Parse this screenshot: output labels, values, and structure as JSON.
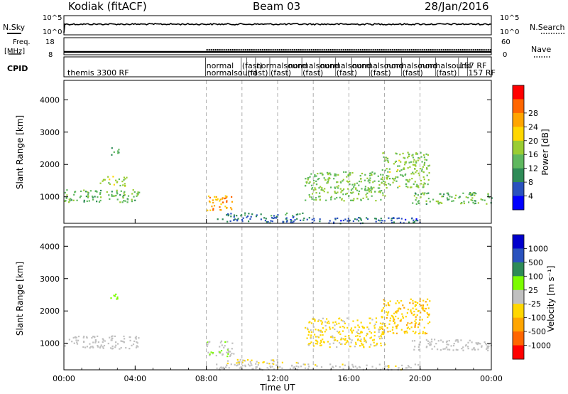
{
  "header": {
    "station": "Kodiak (fitACF)",
    "beam": "Beam 03",
    "date": "28/Jan/2016"
  },
  "top_panels": {
    "nsky": {
      "label": "N.Sky",
      "ticks": [
        "10^5",
        "10^0"
      ]
    },
    "nsearch": {
      "label": "N.Search",
      "ticks": [
        "10^5",
        "10^0"
      ]
    },
    "freq": {
      "label": "Freq.",
      "unit": "[MHz]",
      "ticks": [
        "18",
        "8"
      ]
    },
    "nave": {
      "label": "Nave",
      "ticks": [
        "60",
        "0"
      ]
    },
    "cpid": {
      "label": "CPID"
    }
  },
  "cpid_labels": [
    {
      "text": "themis 3300 RF",
      "t": 0.2,
      "row": 1
    },
    {
      "text": "normal",
      "t": 8.0,
      "row": 0
    },
    {
      "text": "normalsound",
      "t": 8.0,
      "row": 1
    },
    {
      "text": "(fast)",
      "t": 10.0,
      "row": 0
    },
    {
      "text": "(fast)",
      "t": 10.3,
      "row": 1
    },
    {
      "text": "normalsound",
      "t": 10.8,
      "row": 0
    },
    {
      "text": "(fast)",
      "t": 11.6,
      "row": 1
    },
    {
      "text": "normalsound",
      "t": 12.6,
      "row": 0
    },
    {
      "text": "(fast)",
      "t": 13.4,
      "row": 1
    },
    {
      "text": "normalsound",
      "t": 14.4,
      "row": 0
    },
    {
      "text": "(fast)",
      "t": 15.3,
      "row": 1
    },
    {
      "text": "normalsound",
      "t": 16.2,
      "row": 0
    },
    {
      "text": "(fast)",
      "t": 17.2,
      "row": 1
    },
    {
      "text": "normalsound",
      "t": 18.1,
      "row": 0
    },
    {
      "text": "(fast)",
      "t": 19.0,
      "row": 1
    },
    {
      "text": "normalsound",
      "t": 20.0,
      "row": 0
    },
    {
      "text": "(fast)",
      "t": 20.9,
      "row": 1
    },
    {
      "text": "157 RF",
      "t": 22.2,
      "row": 0
    },
    {
      "text": "157 RF",
      "t": 22.7,
      "row": 1
    }
  ],
  "chart_data": [
    {
      "type": "heatmap",
      "title": "",
      "xlabel": "Time UT",
      "ylabel": "Slant Range [km]",
      "xlim": [
        0,
        24
      ],
      "ylim": [
        180,
        4600
      ],
      "xticks": [
        "00:00",
        "04:00",
        "08:00",
        "12:00",
        "16:00",
        "20:00",
        "00:00"
      ],
      "yticks": [
        1000,
        2000,
        3000,
        4000
      ],
      "colorbar": {
        "label": "Power [dB]",
        "ticks": [
          "4",
          "8",
          "12",
          "16",
          "20",
          "24",
          "28"
        ],
        "range": [
          0,
          30
        ],
        "colors": [
          "#0000ff",
          "#2a52be",
          "#2e8b57",
          "#5fb85f",
          "#9acd32",
          "#ffd700",
          "#ffa500",
          "#ff6600",
          "#ff0000"
        ]
      },
      "features": [
        {
          "t": [
            0.0,
            4.2
          ],
          "range": [
            850,
            1250
          ],
          "value": 12
        },
        {
          "t": [
            2.0,
            3.5
          ],
          "range": [
            1350,
            1650
          ],
          "value": 14
        },
        {
          "t": [
            2.6,
            3.1
          ],
          "range": [
            2300,
            2550
          ],
          "value": 10
        },
        {
          "t": [
            8.0,
            9.5
          ],
          "range": [
            600,
            1100
          ],
          "value": 22
        },
        {
          "t": [
            9.0,
            13.5
          ],
          "range": [
            380,
            520
          ],
          "value": 8
        },
        {
          "t": [
            13.5,
            18.0
          ],
          "range": [
            900,
            1800
          ],
          "value": 13
        },
        {
          "t": [
            17.8,
            20.5
          ],
          "range": [
            1300,
            2400
          ],
          "value": 14
        },
        {
          "t": [
            19.5,
            24.0
          ],
          "range": [
            800,
            1150
          ],
          "value": 12
        },
        {
          "t": [
            8.5,
            20.0
          ],
          "range": [
            200,
            380
          ],
          "value": 6
        }
      ]
    },
    {
      "type": "heatmap",
      "title": "",
      "xlabel": "Time UT",
      "ylabel": "Slant Range [km]",
      "xlim": [
        0,
        24
      ],
      "ylim": [
        180,
        4600
      ],
      "xticks": [
        "00:00",
        "04:00",
        "08:00",
        "12:00",
        "16:00",
        "20:00",
        "00:00"
      ],
      "yticks": [
        1000,
        2000,
        3000,
        4000
      ],
      "colorbar": {
        "label": "Velocity [m s⁻¹]",
        "ticks": [
          "1000",
          "500",
          "100",
          "25",
          "-25",
          "-100",
          "-500",
          "-1000"
        ],
        "range": [
          -1000,
          1000
        ],
        "colors": [
          "#0000cc",
          "#2a52be",
          "#2e8b57",
          "#7cfc00",
          "#c0c0c0",
          "#ffd700",
          "#ffa500",
          "#ff6600",
          "#ff0000"
        ]
      },
      "features": [
        {
          "t": [
            0.0,
            4.2
          ],
          "range": [
            850,
            1250
          ],
          "value": 0
        },
        {
          "t": [
            2.6,
            3.1
          ],
          "range": [
            2300,
            2550
          ],
          "value": 150
        },
        {
          "t": [
            8.0,
            9.5
          ],
          "range": [
            600,
            1100
          ],
          "value": 80
        },
        {
          "t": [
            9.0,
            13.5
          ],
          "range": [
            380,
            520
          ],
          "value": -120
        },
        {
          "t": [
            13.5,
            18.0
          ],
          "range": [
            900,
            1800
          ],
          "value": -150
        },
        {
          "t": [
            17.8,
            20.5
          ],
          "range": [
            1300,
            2400
          ],
          "value": -300
        },
        {
          "t": [
            19.5,
            24.0
          ],
          "range": [
            800,
            1150
          ],
          "value": 0
        },
        {
          "t": [
            8.5,
            20.0
          ],
          "range": [
            200,
            380
          ],
          "value": -60
        }
      ]
    }
  ],
  "xaxis_label": "Time UT"
}
